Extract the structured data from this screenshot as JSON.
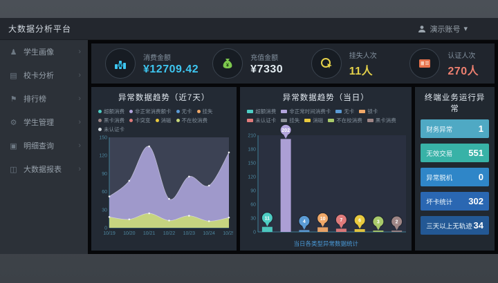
{
  "topbar": {
    "title": "大数据分析平台",
    "user": "演示账号",
    "dropdown_arrow": "▾"
  },
  "sidebar": {
    "items": [
      {
        "id": "student-profile",
        "label": "学生画像",
        "icon": "user-icon"
      },
      {
        "id": "card-analysis",
        "label": "校卡分析",
        "icon": "card-icon"
      },
      {
        "id": "ranking",
        "label": "排行榜",
        "icon": "flag-icon"
      },
      {
        "id": "student-manage",
        "label": "学生管理",
        "icon": "gear-icon"
      },
      {
        "id": "detail-query",
        "label": "明细查询",
        "icon": "document-icon"
      },
      {
        "id": "bigdata-report",
        "label": "大数据报表",
        "icon": "report-icon"
      }
    ]
  },
  "kpis": [
    {
      "id": "consume",
      "label": "消费金额",
      "value": "¥12709.42",
      "color": "#3ec6f0",
      "icon": "coins-chart-icon"
    },
    {
      "id": "recharge",
      "label": "充值金额",
      "value": "¥7330",
      "color": "#e3ecf1",
      "icon": "money-bag-icon"
    },
    {
      "id": "loss",
      "label": "挂失人次",
      "value": "11人",
      "color": "#e5d24a",
      "icon": "click-hand-icon"
    },
    {
      "id": "auth",
      "label": "认证人次",
      "value": "270人",
      "color": "#ee8070",
      "icon": "id-card-icon"
    }
  ],
  "right_panel": {
    "title": "终端业务运行异常",
    "rows": [
      {
        "label": "财务异常",
        "value": "1",
        "bg": "#4fa9c4"
      },
      {
        "label": "无效交易",
        "value": "551",
        "bg": "#38b2a7"
      },
      {
        "label": "异常脱机",
        "value": "0",
        "bg": "#2f86c8"
      },
      {
        "label": "坏卡统计",
        "value": "302",
        "bg": "#2a67b2"
      },
      {
        "label": "三天以上无轨迹",
        "value": "34",
        "bg": "#235894"
      }
    ]
  },
  "chart_data": [
    {
      "type": "area",
      "title": "异常数据趋势（近7天）",
      "x": [
        "10/19",
        "10/20",
        "10/21",
        "10/22",
        "10/23",
        "10/24",
        "10/25"
      ],
      "series": [
        {
          "name": "非正常消费额卡",
          "color": "#a8a1d6",
          "values": [
            52,
            78,
            135,
            48,
            85,
            70,
            125
          ]
        },
        {
          "name": "不在校消费",
          "color": "#c9d97a",
          "values": [
            18,
            14,
            24,
            12,
            20,
            11,
            17
          ]
        }
      ],
      "ylim": [
        0,
        150
      ],
      "yticks": [
        0,
        30,
        60,
        90,
        120,
        150
      ],
      "grid": false,
      "legend_position": "top",
      "legend": [
        {
          "label": "超额消费",
          "color": "#4ecdc4"
        },
        {
          "label": "非正常消费额卡",
          "color": "#b3a5dd"
        },
        {
          "label": "无卡",
          "color": "#5b9bd5"
        },
        {
          "label": "挂失",
          "color": "#f0a868"
        },
        {
          "label": "黑卡消费",
          "color": "#9e8585"
        },
        {
          "label": "卡突变",
          "color": "#e07b7b"
        },
        {
          "label": "消磁",
          "color": "#e8c93e"
        },
        {
          "label": "不在校消费",
          "color": "#c9d97a"
        },
        {
          "label": "未认证卡",
          "color": "#cfd6dc"
        }
      ]
    },
    {
      "type": "bar",
      "title": "异常数据趋势（当日）",
      "categories": [
        "超额消费",
        "非正常时间消费卡",
        "无卡",
        "锁卡",
        "未认证卡",
        "消磁",
        "不在校消费",
        "黑卡消费"
      ],
      "values": [
        11,
        202,
        4,
        10,
        7,
        6,
        3,
        2
      ],
      "colors": [
        "#4ecdc4",
        "#b3a5dd",
        "#5b9bd5",
        "#f0a868",
        "#e07b7b",
        "#e8c93e",
        "#a8c96a",
        "#9e8585"
      ],
      "ylim": [
        0,
        210
      ],
      "yticks": [
        0,
        30,
        60,
        90,
        120,
        150,
        180,
        210
      ],
      "grid": false,
      "legend_position": "top",
      "legend": [
        {
          "label": "超额消费",
          "color": "#4ecdc4"
        },
        {
          "label": "非正常时间消费卡",
          "color": "#b3a5dd"
        },
        {
          "label": "无卡",
          "color": "#5b9bd5"
        },
        {
          "label": "锁卡",
          "color": "#f0a868"
        },
        {
          "label": "未认证卡",
          "color": "#e07b7b"
        },
        {
          "label": "挂失",
          "color": "#8a8f96"
        },
        {
          "label": "消磁",
          "color": "#e8c93e"
        },
        {
          "label": "不在校消费",
          "color": "#a8c96a"
        },
        {
          "label": "黑卡消费",
          "color": "#9e8585"
        }
      ],
      "caption": "当日各类型异常数据统计"
    }
  ]
}
